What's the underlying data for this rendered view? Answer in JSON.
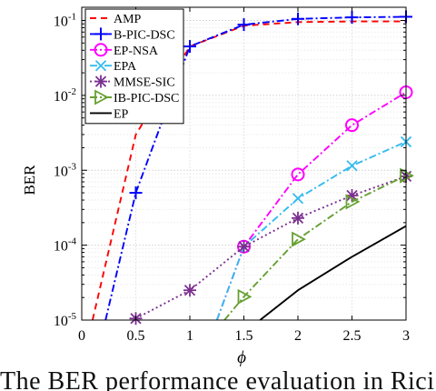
{
  "chart_data": {
    "type": "line",
    "xlabel": "ϕ",
    "ylabel": "BER",
    "xlim": [
      0,
      3
    ],
    "ylim": [
      1e-05,
      0.15
    ],
    "yscale": "log",
    "grid": true,
    "legend_placement": "top-left",
    "xticks": [
      {
        "value": 0,
        "label": "0"
      },
      {
        "value": 0.5,
        "label": "0.5"
      },
      {
        "value": 1,
        "label": "1"
      },
      {
        "value": 1.5,
        "label": "1.5"
      },
      {
        "value": 2,
        "label": "2"
      },
      {
        "value": 2.5,
        "label": "2.5"
      },
      {
        "value": 3,
        "label": "3"
      }
    ],
    "yticks": [
      {
        "value": 1e-05,
        "base": "10",
        "exp": "-5"
      },
      {
        "value": 0.0001,
        "base": "10",
        "exp": "-4"
      },
      {
        "value": 0.001,
        "base": "10",
        "exp": "-3"
      },
      {
        "value": 0.01,
        "base": "10",
        "exp": "-2"
      },
      {
        "value": 0.1,
        "base": "10",
        "exp": "-1"
      }
    ],
    "series": [
      {
        "name": "AMP",
        "color": "#ff0000",
        "dash": "7,5",
        "marker": "none",
        "x": [
          0.1,
          0.5,
          1.0,
          1.5,
          2.0,
          2.5,
          3.0
        ],
        "y": [
          1e-05,
          0.003,
          0.045,
          0.085,
          0.095,
          0.097,
          0.097
        ]
      },
      {
        "name": "B-PIC-DSC",
        "color": "#0000ff",
        "dash": "8,3,2,3",
        "marker": "plus",
        "x": [
          0.22,
          0.5,
          1.0,
          1.5,
          2.0,
          2.5,
          3.0
        ],
        "y": [
          1e-05,
          0.0005,
          0.045,
          0.088,
          0.105,
          0.11,
          0.112
        ]
      },
      {
        "name": "EP-NSA",
        "color": "#ff00ff",
        "dash": "8,3,2,3",
        "marker": "circle",
        "x": [
          1.25,
          1.5,
          2.0,
          2.5,
          3.0
        ],
        "y": [
          1e-05,
          9.55e-05,
          0.00088,
          0.004,
          0.011
        ]
      },
      {
        "name": "EPA",
        "color": "#33bbee",
        "dash": "8,3,2,3",
        "marker": "cross",
        "x": [
          1.25,
          1.5,
          2.0,
          2.5,
          3.0
        ],
        "y": [
          1e-05,
          9.55e-05,
          0.00042,
          0.00115,
          0.0024
        ]
      },
      {
        "name": "MMSE-SIC",
        "color": "#7b2f8f",
        "dash": "2,3",
        "marker": "asterisk",
        "x": [
          0.5,
          1.0,
          1.5,
          2.0,
          2.5,
          3.0
        ],
        "y": [
          1.05e-05,
          2.5e-05,
          9.55e-05,
          0.00023,
          0.00046,
          0.00083
        ]
      },
      {
        "name": "IB-PIC-DSC",
        "color": "#66a032",
        "dash": "8,3,2,3",
        "marker": "triangle-right",
        "x": [
          1.32,
          1.5,
          2.0,
          2.5,
          3.0
        ],
        "y": [
          1e-05,
          2.05e-05,
          0.00012,
          0.00038,
          0.00085
        ]
      },
      {
        "name": "EP",
        "color": "#000000",
        "dash": "",
        "marker": "none",
        "x": [
          1.65,
          2.0,
          2.5,
          3.0
        ],
        "y": [
          1e-05,
          2.5e-05,
          7e-05,
          0.00018
        ]
      }
    ]
  },
  "caption": "The BER performance evaluation in Rici"
}
